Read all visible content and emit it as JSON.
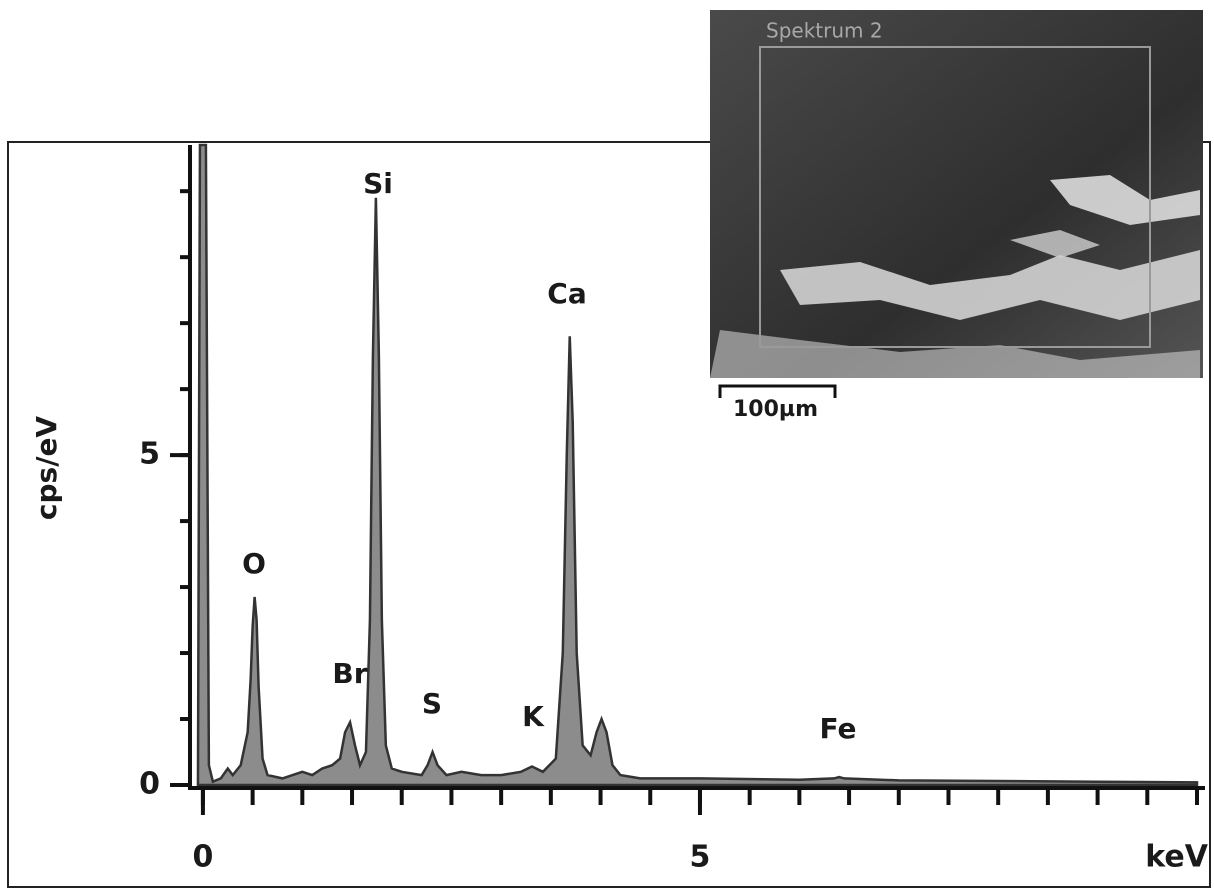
{
  "chart_data": {
    "type": "area",
    "xlabel": "keV",
    "ylabel": "cps/eV",
    "xlim": [
      -0.13,
      10
    ],
    "ylim": [
      0,
      9.7
    ],
    "xticks": [
      0,
      5
    ],
    "yticks": [
      0,
      5
    ],
    "xminorticks": [
      0,
      0.5,
      1,
      1.5,
      2,
      2.5,
      3,
      3.5,
      4,
      4.5,
      5,
      5.5,
      6,
      6.5,
      7,
      7.5,
      8,
      8.5,
      9,
      9.5,
      10
    ],
    "yminorticks": [
      0,
      1,
      2,
      3,
      4,
      5,
      6,
      7,
      8,
      9
    ],
    "color": "#8c8c8c",
    "line_color": "#333333",
    "x": [
      -0.05,
      -0.03,
      0.03,
      0.06,
      0.1,
      0.18,
      0.25,
      0.3,
      0.38,
      0.45,
      0.48,
      0.5,
      0.52,
      0.54,
      0.56,
      0.6,
      0.65,
      0.8,
      1.0,
      1.1,
      1.2,
      1.3,
      1.38,
      1.43,
      1.48,
      1.53,
      1.58,
      1.64,
      1.68,
      1.71,
      1.74,
      1.77,
      1.8,
      1.84,
      1.9,
      2.0,
      2.2,
      2.26,
      2.31,
      2.36,
      2.45,
      2.6,
      2.8,
      3.0,
      3.2,
      3.31,
      3.42,
      3.55,
      3.62,
      3.66,
      3.69,
      3.72,
      3.76,
      3.82,
      3.9,
      3.96,
      4.01,
      4.06,
      4.12,
      4.2,
      4.4,
      5,
      6,
      6.35,
      6.4,
      6.45,
      7,
      8,
      9,
      10
    ],
    "values": [
      0,
      9.7,
      9.7,
      0.3,
      0.05,
      0.1,
      0.25,
      0.15,
      0.3,
      0.8,
      1.6,
      2.4,
      2.85,
      2.5,
      1.5,
      0.4,
      0.15,
      0.1,
      0.2,
      0.15,
      0.25,
      0.3,
      0.4,
      0.8,
      0.95,
      0.6,
      0.3,
      0.5,
      2.5,
      6.5,
      8.9,
      6.5,
      2.5,
      0.6,
      0.25,
      0.2,
      0.15,
      0.3,
      0.5,
      0.3,
      0.15,
      0.2,
      0.15,
      0.15,
      0.2,
      0.28,
      0.2,
      0.4,
      2.0,
      5.0,
      6.8,
      5.5,
      2.0,
      0.6,
      0.45,
      0.8,
      1.0,
      0.8,
      0.3,
      0.15,
      0.1,
      0.1,
      0.08,
      0.1,
      0.12,
      0.1,
      0.07,
      0.06,
      0.05,
      0.04
    ],
    "annotations": [
      "O",
      "Si",
      "Br",
      "S",
      "K",
      "Ca",
      "Fe"
    ],
    "inset": {
      "title": "Spektrum 2",
      "scale_bar": "100µm"
    }
  }
}
